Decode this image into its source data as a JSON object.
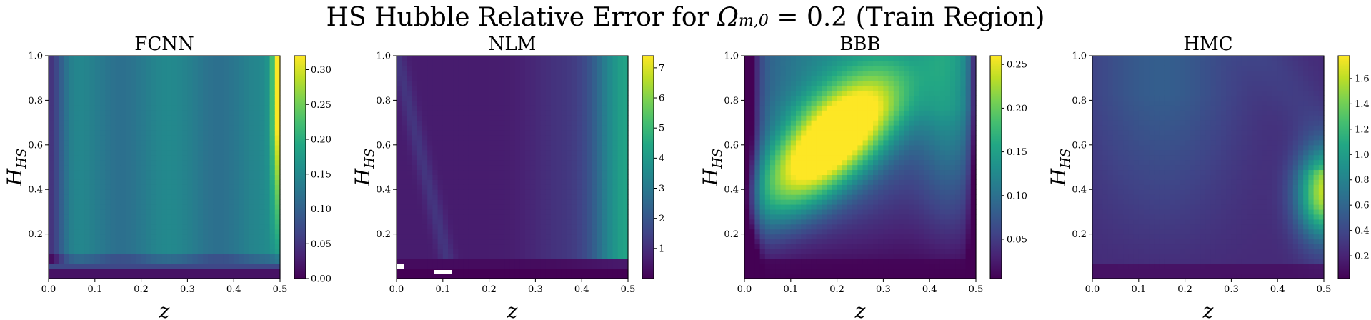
{
  "suptitle": {
    "prefix": "HS Hubble Relative Error for ",
    "omega": "Ω",
    "omega_sub": "m,0",
    "suffix": " = 0.2 (Train Region)"
  },
  "colormap": "viridis",
  "chart_data": [
    {
      "type": "heatmap",
      "title": "FCNN",
      "xlabel": "z",
      "ylabel": "H",
      "ylabel_sub": "HS",
      "xlim": [
        0.0,
        0.5
      ],
      "ylim": [
        0.0,
        1.0
      ],
      "x_ticks": [
        "0.0",
        "0.1",
        "0.2",
        "0.3",
        "0.4",
        "0.5"
      ],
      "y_ticks": [
        "0.2",
        "0.4",
        "0.6",
        "0.8",
        "1.0"
      ],
      "colorbar": {
        "min": 0.0,
        "max": 0.32,
        "ticks": [
          "0.00",
          "0.05",
          "0.10",
          "0.15",
          "0.20",
          "0.25",
          "0.30"
        ]
      }
    },
    {
      "type": "heatmap",
      "title": "NLM",
      "xlabel": "z",
      "ylabel": "H",
      "ylabel_sub": "HS",
      "xlim": [
        0.0,
        0.5
      ],
      "ylim": [
        0.0,
        1.0
      ],
      "x_ticks": [
        "0.0",
        "0.1",
        "0.2",
        "0.3",
        "0.4",
        "0.5"
      ],
      "y_ticks": [
        "0.2",
        "0.4",
        "0.6",
        "0.8",
        "1.0"
      ],
      "colorbar": {
        "min": 0.0,
        "max": 7.4,
        "ticks": [
          "1",
          "2",
          "3",
          "4",
          "5",
          "6",
          "7"
        ]
      }
    },
    {
      "type": "heatmap",
      "title": "BBB",
      "xlabel": "z",
      "ylabel": "H",
      "ylabel_sub": "HS",
      "xlim": [
        0.0,
        0.5
      ],
      "ylim": [
        0.0,
        1.0
      ],
      "x_ticks": [
        "0.0",
        "0.1",
        "0.2",
        "0.3",
        "0.4",
        "0.5"
      ],
      "y_ticks": [
        "0.2",
        "0.4",
        "0.6",
        "0.8",
        "1.0"
      ],
      "colorbar": {
        "min": 0.005,
        "max": 0.26,
        "ticks": [
          "0.05",
          "0.10",
          "0.15",
          "0.20",
          "0.25"
        ]
      }
    },
    {
      "type": "heatmap",
      "title": "HMC",
      "xlabel": "z",
      "ylabel": "H",
      "ylabel_sub": "HS",
      "xlim": [
        0.0,
        0.5
      ],
      "ylim": [
        0.0,
        1.0
      ],
      "x_ticks": [
        "0.0",
        "0.1",
        "0.2",
        "0.3",
        "0.4",
        "0.5"
      ],
      "y_ticks": [
        "0.2",
        "0.4",
        "0.6",
        "0.8",
        "1.0"
      ],
      "colorbar": {
        "min": 0.02,
        "max": 1.78,
        "ticks": [
          "0.2",
          "0.4",
          "0.6",
          "0.8",
          "1.0",
          "1.2",
          "1.4",
          "1.6"
        ]
      }
    }
  ]
}
